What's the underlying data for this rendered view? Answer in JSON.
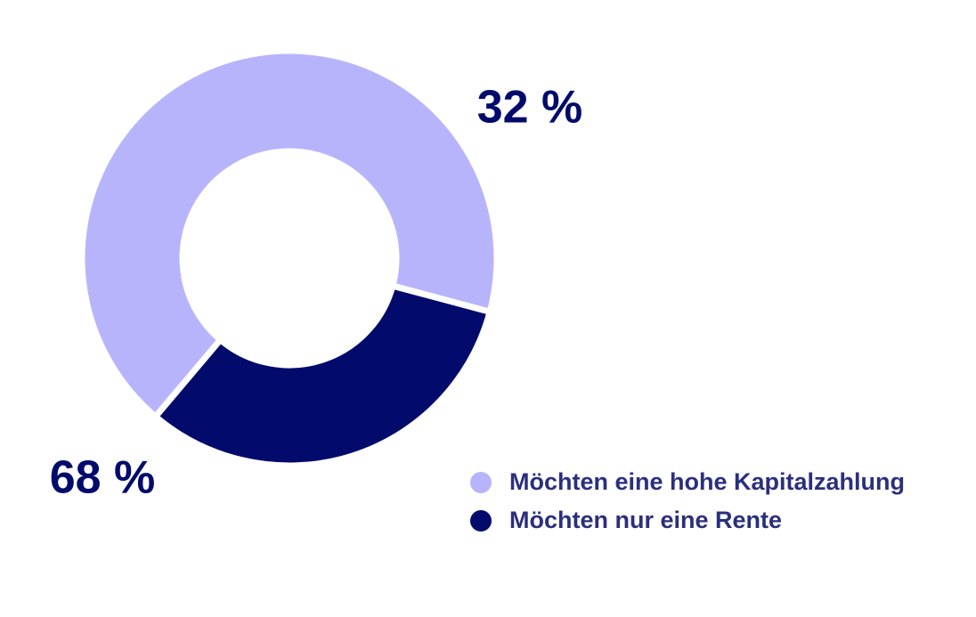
{
  "chart_data": {
    "type": "pie",
    "donut": true,
    "categories": [
      "Möchten eine hohe Kapitalzahlung",
      "Möchten nur eine Rente"
    ],
    "values": [
      68,
      32
    ],
    "value_labels": [
      "68 %",
      "32 %"
    ],
    "colors": [
      "#b8b4fc",
      "#020b6b"
    ]
  }
}
